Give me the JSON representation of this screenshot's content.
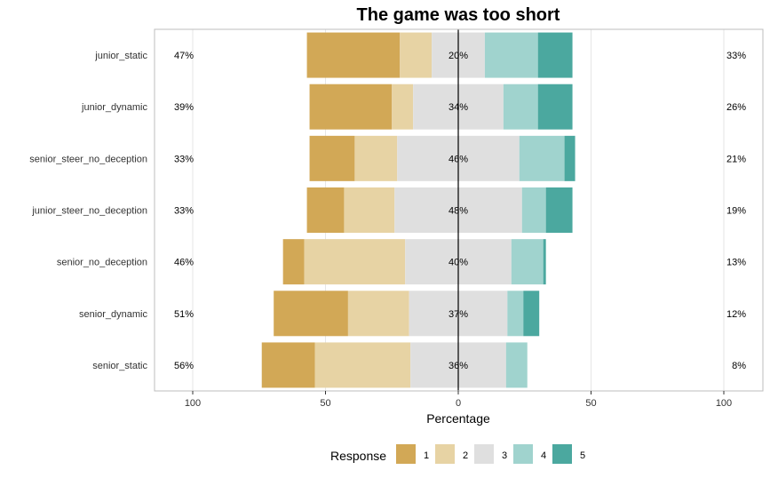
{
  "chart_data": {
    "type": "bar",
    "orientation": "horizontal-diverging",
    "title": "The game was too short",
    "xlabel": "Percentage",
    "ylabel": "",
    "xlim": [
      -100,
      100
    ],
    "x_ticks": [
      {
        "value": -100,
        "label": "100"
      },
      {
        "value": -50,
        "label": "50"
      },
      {
        "value": 0,
        "label": "0"
      },
      {
        "value": 50,
        "label": "50"
      },
      {
        "value": 100,
        "label": "100"
      }
    ],
    "grid": true,
    "legend": {
      "title": "Response",
      "position": "bottom",
      "levels": [
        "1",
        "2",
        "3",
        "4",
        "5"
      ],
      "colors": [
        "#D2A856",
        "#E7D3A4",
        "#DFDFDF",
        "#A0D3CE",
        "#4BA89F"
      ]
    },
    "categories": [
      "junior_static",
      "junior_dynamic",
      "senior_steer_no_deception",
      "junior_steer_no_deception",
      "senior_no_deception",
      "senior_dynamic",
      "senior_static"
    ],
    "series": [
      {
        "name": "1",
        "values": [
          35,
          31,
          17,
          14,
          8,
          28,
          20
        ]
      },
      {
        "name": "2",
        "values": [
          12,
          8,
          16,
          19,
          38,
          23,
          36
        ]
      },
      {
        "name": "3",
        "values": [
          20,
          34,
          46,
          48,
          40,
          37,
          36
        ]
      },
      {
        "name": "4",
        "values": [
          20,
          13,
          17,
          9,
          12,
          6,
          8
        ]
      },
      {
        "name": "5",
        "values": [
          13,
          13,
          4,
          10,
          1,
          6,
          0
        ]
      }
    ],
    "low_labels": [
      "47%",
      "39%",
      "33%",
      "33%",
      "46%",
      "51%",
      "56%"
    ],
    "mid_labels": [
      "20%",
      "34%",
      "46%",
      "48%",
      "40%",
      "37%",
      "36%"
    ],
    "high_labels": [
      "33%",
      "26%",
      "21%",
      "19%",
      "13%",
      "12%",
      "8%"
    ]
  }
}
